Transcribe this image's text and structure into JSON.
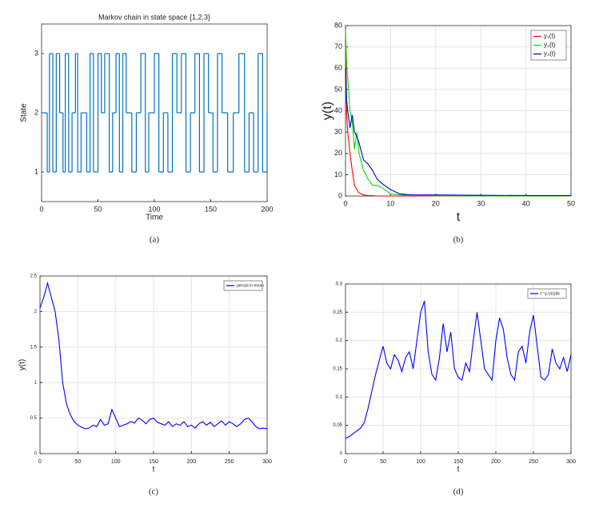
{
  "chart_data": [
    {
      "type": "step",
      "title": "Markov chain in state space {1,2,3}",
      "x_label": "Time",
      "y_label": "State",
      "caption": "(a)",
      "xlim": [
        0,
        200
      ],
      "xticks": [
        0,
        50,
        100,
        150,
        200
      ],
      "ylim": [
        0.5,
        3.5
      ],
      "yticks": [
        1,
        2,
        3
      ],
      "grid": false,
      "series": [
        {
          "name": null,
          "color": "#0072bd",
          "x": [
            0,
            5,
            7,
            10,
            13,
            16,
            19,
            21,
            24,
            27,
            30,
            32,
            35,
            40,
            43,
            46,
            50,
            53,
            56,
            60,
            63,
            66,
            69,
            72,
            75,
            80,
            84,
            88,
            92,
            95,
            100,
            104,
            108,
            112,
            116,
            120,
            124,
            128,
            132,
            136,
            140,
            144,
            148,
            152,
            156,
            160,
            165,
            170,
            175,
            180,
            184,
            188,
            192,
            196,
            200
          ],
          "values": [
            2,
            1,
            3,
            1,
            3,
            2,
            1,
            3,
            1,
            2,
            3,
            1,
            2,
            1,
            3,
            1,
            3,
            2,
            3,
            1,
            2,
            3,
            1,
            3,
            2,
            1,
            2,
            3,
            1,
            2,
            3,
            1,
            2,
            1,
            3,
            2,
            3,
            1,
            2,
            3,
            1,
            3,
            2,
            1,
            3,
            2,
            1,
            2,
            3,
            1,
            2,
            1,
            3,
            1,
            2
          ]
        }
      ]
    },
    {
      "type": "line",
      "x_label": "t",
      "y_label": "y(t)",
      "caption": "(b)",
      "xlim": [
        0,
        50
      ],
      "xticks": [
        0,
        10,
        20,
        30,
        40,
        50
      ],
      "ylim": [
        0,
        80
      ],
      "yticks": [
        0,
        10,
        20,
        30,
        40,
        50,
        60,
        70,
        80
      ],
      "grid": true,
      "legend": "upper right",
      "series": [
        {
          "name": "y₁(t)",
          "color": "#ff0000",
          "x": [
            0,
            0.25,
            0.5,
            1,
            1.5,
            2,
            2.5,
            3,
            4,
            5,
            6,
            7,
            8,
            10,
            12,
            15,
            20,
            30,
            40,
            50
          ],
          "values": [
            80,
            38,
            30,
            20,
            12,
            5,
            3,
            1.5,
            0.5,
            0.2,
            0.1,
            0,
            0,
            0,
            0,
            0,
            0,
            0,
            0,
            0
          ]
        },
        {
          "name": "y₂(t)",
          "color": "#00dd00",
          "x": [
            0,
            0.25,
            0.5,
            1,
            1.5,
            2,
            2.5,
            3,
            4,
            5,
            6,
            7,
            8,
            10,
            12,
            15,
            20,
            30,
            40,
            50
          ],
          "values": [
            78,
            62,
            55,
            40,
            35,
            22,
            30,
            20,
            12,
            8,
            5,
            5,
            4,
            1,
            0.5,
            0.2,
            0.1,
            0,
            0,
            0
          ]
        },
        {
          "name": "y₃(t)",
          "color": "#0000cc",
          "x": [
            0,
            0.25,
            0.5,
            1,
            1.5,
            2,
            2.5,
            3,
            4,
            5,
            6,
            7,
            8,
            10,
            12,
            15,
            20,
            30,
            40,
            50
          ],
          "values": [
            60,
            45,
            40,
            32,
            38,
            30,
            28,
            25,
            17,
            15,
            12,
            8,
            6,
            3,
            1,
            0.5,
            0.5,
            0.3,
            0.2,
            0.2
          ]
        }
      ]
    },
    {
      "type": "line",
      "x_label": "t",
      "y_label": "y(t)",
      "caption": "(c)",
      "xlim": [
        0,
        300
      ],
      "xticks": [
        0,
        50,
        100,
        150,
        200,
        250,
        300
      ],
      "ylim": [
        0,
        2.5
      ],
      "yticks": [
        0,
        0.5,
        1,
        1.5,
        2,
        2.5
      ],
      "grid": true,
      "legend": "upper right",
      "series": [
        {
          "name": "persist in mean",
          "color": "#0000ff",
          "x": [
            0,
            5,
            10,
            15,
            20,
            25,
            30,
            35,
            40,
            45,
            50,
            55,
            60,
            65,
            70,
            75,
            80,
            85,
            90,
            95,
            100,
            105,
            110,
            115,
            120,
            125,
            130,
            135,
            140,
            145,
            150,
            155,
            160,
            165,
            170,
            175,
            180,
            185,
            190,
            195,
            200,
            205,
            210,
            215,
            220,
            225,
            230,
            235,
            240,
            245,
            250,
            255,
            260,
            265,
            270,
            275,
            280,
            285,
            290,
            295,
            300
          ],
          "values": [
            2.05,
            2.2,
            2.4,
            2.2,
            2.0,
            1.6,
            1.0,
            0.7,
            0.55,
            0.45,
            0.4,
            0.37,
            0.35,
            0.36,
            0.4,
            0.38,
            0.48,
            0.4,
            0.42,
            0.62,
            0.5,
            0.38,
            0.4,
            0.42,
            0.45,
            0.43,
            0.5,
            0.47,
            0.42,
            0.48,
            0.5,
            0.44,
            0.42,
            0.4,
            0.45,
            0.38,
            0.42,
            0.4,
            0.45,
            0.38,
            0.4,
            0.36,
            0.42,
            0.45,
            0.4,
            0.44,
            0.38,
            0.42,
            0.46,
            0.4,
            0.45,
            0.42,
            0.38,
            0.42,
            0.48,
            0.5,
            0.45,
            0.38,
            0.35,
            0.36,
            0.35
          ]
        }
      ]
    },
    {
      "type": "line",
      "x_label": "t",
      "caption": "(d)",
      "xlim": [
        0,
        300
      ],
      "xticks": [
        0,
        50,
        100,
        150,
        200,
        250,
        300
      ],
      "ylim": [
        0,
        0.3
      ],
      "yticks": [
        0,
        0.05,
        0.1,
        0.15,
        0.2,
        0.25,
        0.3
      ],
      "grid": true,
      "legend": "upper right",
      "series": [
        {
          "name": "t⁻¹∫₀ᵗy(s)ds",
          "color": "#0000ff",
          "x": [
            0,
            5,
            10,
            15,
            20,
            25,
            30,
            35,
            40,
            45,
            50,
            55,
            60,
            65,
            70,
            75,
            80,
            85,
            90,
            95,
            100,
            105,
            110,
            115,
            120,
            125,
            130,
            135,
            140,
            145,
            150,
            155,
            160,
            165,
            170,
            175,
            180,
            185,
            190,
            195,
            200,
            205,
            210,
            215,
            220,
            225,
            230,
            235,
            240,
            245,
            250,
            255,
            260,
            265,
            270,
            275,
            280,
            285,
            290,
            295,
            300
          ],
          "values": [
            0.027,
            0.03,
            0.035,
            0.04,
            0.045,
            0.055,
            0.08,
            0.11,
            0.14,
            0.165,
            0.19,
            0.16,
            0.15,
            0.175,
            0.165,
            0.145,
            0.17,
            0.18,
            0.15,
            0.2,
            0.25,
            0.27,
            0.18,
            0.14,
            0.13,
            0.17,
            0.23,
            0.18,
            0.215,
            0.15,
            0.135,
            0.13,
            0.16,
            0.145,
            0.2,
            0.25,
            0.2,
            0.15,
            0.14,
            0.13,
            0.2,
            0.24,
            0.22,
            0.17,
            0.14,
            0.13,
            0.18,
            0.19,
            0.16,
            0.215,
            0.245,
            0.19,
            0.135,
            0.13,
            0.14,
            0.185,
            0.16,
            0.15,
            0.17,
            0.145,
            0.175
          ]
        }
      ]
    }
  ]
}
